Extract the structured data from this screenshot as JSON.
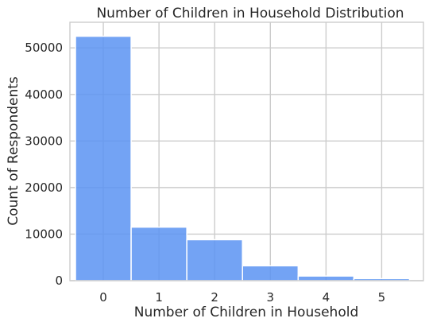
{
  "chart_data": {
    "type": "bar",
    "title": "Number of Children in Household Distribution",
    "xlabel": "Number of Children in Household",
    "ylabel": "Count of Respondents",
    "categories": [
      "0",
      "1",
      "2",
      "3",
      "4",
      "5"
    ],
    "values": [
      52500,
      11500,
      8800,
      3200,
      1000,
      450
    ],
    "xlim": [
      -0.6,
      5.75
    ],
    "ylim": [
      0,
      55500
    ],
    "yticks": [
      0,
      10000,
      20000,
      30000,
      40000,
      50000
    ],
    "grid": true,
    "bar_color": "#5b93f2"
  }
}
